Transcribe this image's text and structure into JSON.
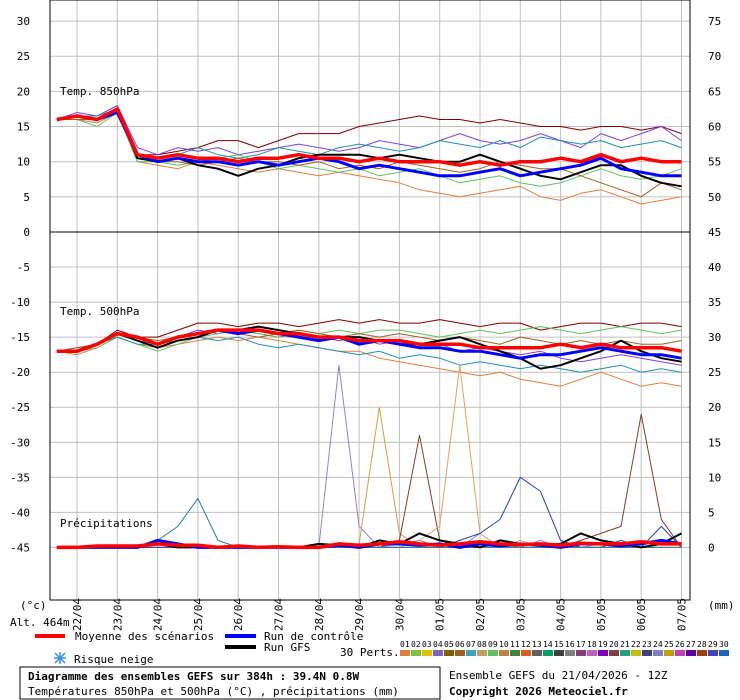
{
  "chart_data": [
    {
      "type": "line",
      "title": "Temp. 850hPa",
      "grid": true,
      "ylim": [
        0,
        33
      ],
      "yticks": [
        0,
        5,
        10,
        15,
        20,
        25,
        30
      ],
      "y2lim": [
        45,
        78
      ],
      "y2ticks": [
        50,
        55,
        60,
        65,
        70,
        75
      ],
      "mean": [
        16,
        16.5,
        16,
        17.5,
        11,
        10.5,
        11,
        10.5,
        10.5,
        10,
        10.5,
        10.5,
        11,
        10.5,
        10.5,
        10,
        10.5,
        10,
        10,
        10,
        9.5,
        10,
        9.5,
        10,
        10,
        10.5,
        10,
        11,
        10,
        10.5,
        10,
        10
      ],
      "control": [
        16,
        16.5,
        16,
        17,
        11,
        10,
        10.5,
        10,
        10,
        9.5,
        10,
        9.5,
        10,
        10.5,
        10,
        9,
        9.5,
        9,
        8.5,
        8,
        8,
        8.5,
        9,
        8,
        8.5,
        9,
        9.5,
        10.5,
        9,
        8.5,
        8,
        8
      ],
      "gfs": [
        16,
        16.5,
        16,
        17.5,
        10.5,
        10,
        10.5,
        9.5,
        9,
        8,
        9,
        9.5,
        10.5,
        11,
        11,
        11,
        10.5,
        11,
        10.5,
        10,
        10,
        11,
        10,
        9,
        8,
        7.5,
        8.5,
        9.5,
        9.5,
        8,
        7,
        6.5
      ],
      "perturbations": [
        {
          "color": "#800000",
          "values": [
            16,
            16.5,
            16,
            17.5,
            11,
            11,
            11.5,
            12,
            13,
            13,
            12,
            13,
            14,
            14,
            14,
            15,
            15.5,
            16,
            16.5,
            16,
            16,
            15.5,
            16,
            15.5,
            15,
            15,
            14.5,
            15,
            15,
            14.5,
            15,
            14
          ]
        },
        {
          "color": "#e08040",
          "values": [
            16,
            16,
            15.5,
            17,
            10,
            9.5,
            9,
            10,
            9.5,
            9,
            8.5,
            9,
            8.5,
            8,
            8.5,
            8,
            7.5,
            7,
            6,
            5.5,
            5,
            5.5,
            6,
            6.5,
            5,
            4.5,
            5.5,
            6,
            5,
            4,
            4.5,
            5
          ]
        },
        {
          "color": "#8040e0",
          "values": [
            16,
            17,
            16.5,
            18,
            12,
            11,
            12,
            11.5,
            12,
            11,
            11.5,
            12,
            12.5,
            12,
            11.5,
            12,
            13,
            12.5,
            12,
            13,
            14,
            13,
            12.5,
            13,
            14,
            13,
            12,
            14,
            13,
            14,
            15,
            13
          ]
        },
        {
          "color": "#60c060",
          "values": [
            16,
            16,
            15,
            17,
            10,
            10,
            9.5,
            10,
            10.5,
            11,
            10,
            9,
            9.5,
            9,
            8.5,
            9,
            8,
            8.5,
            9,
            8,
            7,
            7.5,
            8,
            7,
            6.5,
            7,
            8,
            9,
            8,
            7.5,
            8,
            9
          ]
        },
        {
          "color": "#2090b0",
          "values": [
            16,
            16.5,
            16.5,
            17.5,
            11,
            10.5,
            11,
            12,
            11,
            10.5,
            11,
            12,
            11.5,
            11,
            12,
            12.5,
            12,
            11.5,
            12,
            13,
            12.5,
            12,
            13,
            12,
            13.5,
            13,
            12.5,
            13,
            12,
            12.5,
            13,
            12
          ]
        },
        {
          "color": "#a06020",
          "values": [
            16,
            16,
            16,
            17,
            10.5,
            10,
            10,
            9.5,
            10,
            10.5,
            10,
            10,
            9.5,
            10,
            9,
            9.5,
            9,
            10,
            9.5,
            9,
            8.5,
            9,
            10,
            9.5,
            9,
            9,
            8,
            7,
            6,
            5,
            7,
            6
          ]
        }
      ]
    },
    {
      "type": "line",
      "title": "Temp. 500hPa",
      "grid": true,
      "ylim": [
        -52.5,
        0
      ],
      "yticks": [
        -45,
        -40,
        -35,
        -30,
        -25,
        -20,
        -15,
        -10,
        -5
      ],
      "mean": [
        -17,
        -17,
        -16,
        -14.5,
        -15,
        -16,
        -15,
        -14.5,
        -14,
        -14,
        -14,
        -14.5,
        -14.5,
        -15,
        -15,
        -15.5,
        -15.5,
        -15.5,
        -16,
        -16,
        -16,
        -16.5,
        -16.5,
        -16.5,
        -16.5,
        -16,
        -16.5,
        -16,
        -16.5,
        -16.5,
        -16.5,
        -17
      ],
      "control": [
        -17,
        -17,
        -16,
        -14.5,
        -15,
        -16,
        -15,
        -14.5,
        -14,
        -14.5,
        -14,
        -14.5,
        -15,
        -15.5,
        -15,
        -16,
        -15.5,
        -16,
        -16.5,
        -16.5,
        -17,
        -17,
        -17.5,
        -18,
        -17.5,
        -17.5,
        -17,
        -16.5,
        -17,
        -17.5,
        -17.5,
        -18
      ],
      "gfs": [
        -17,
        -17,
        -16,
        -14.5,
        -15.5,
        -16.5,
        -15.5,
        -15,
        -14,
        -14,
        -13.5,
        -14,
        -14.5,
        -15,
        -15,
        -15,
        -15.5,
        -16,
        -16,
        -15.5,
        -15,
        -16,
        -17,
        -18,
        -19.5,
        -19,
        -18,
        -17,
        -15.5,
        -17,
        -18,
        -18.5
      ],
      "perturbations": [
        {
          "color": "#800000",
          "values": [
            -17,
            -17,
            -16,
            -14,
            -15,
            -15,
            -14,
            -13,
            -13,
            -13.5,
            -13,
            -13,
            -13.5,
            -13,
            -12.5,
            -13,
            -12.5,
            -13,
            -13,
            -12.5,
            -13,
            -13.5,
            -13,
            -13,
            -14,
            -13.5,
            -13,
            -13,
            -13.5,
            -13,
            -13,
            -13.5
          ]
        },
        {
          "color": "#e08040",
          "values": [
            -17,
            -17.5,
            -16.5,
            -15,
            -16,
            -16.5,
            -16,
            -15.5,
            -15,
            -15.5,
            -15,
            -15.5,
            -16,
            -16.5,
            -17,
            -17,
            -18,
            -18.5,
            -19,
            -19.5,
            -20,
            -20.5,
            -20,
            -21,
            -21.5,
            -22,
            -21,
            -20,
            -21,
            -22,
            -21.5,
            -22
          ]
        },
        {
          "color": "#8040e0",
          "values": [
            -17,
            -16.5,
            -16,
            -14.5,
            -15.5,
            -16,
            -15,
            -14,
            -14.5,
            -14,
            -14.5,
            -15,
            -14.5,
            -15,
            -15.5,
            -15,
            -16,
            -15.5,
            -16,
            -16,
            -17,
            -16.5,
            -17,
            -17.5,
            -17,
            -18,
            -18.5,
            -18,
            -17.5,
            -18,
            -18.5,
            -19
          ]
        },
        {
          "color": "#60c060",
          "values": [
            -17,
            -17,
            -16.5,
            -15,
            -16,
            -17,
            -16,
            -15,
            -14.5,
            -14,
            -14.5,
            -15,
            -14,
            -14.5,
            -14,
            -14.5,
            -14,
            -14,
            -14.5,
            -15,
            -14.5,
            -14,
            -14.5,
            -14,
            -13.5,
            -14,
            -14.5,
            -14,
            -13.5,
            -14,
            -14.5,
            -14
          ]
        },
        {
          "color": "#2090b0",
          "values": [
            -17,
            -17,
            -16,
            -15,
            -16,
            -16,
            -15.5,
            -15,
            -15.5,
            -15,
            -16,
            -16.5,
            -16,
            -16.5,
            -17,
            -17.5,
            -17,
            -18,
            -17.5,
            -18,
            -19,
            -18.5,
            -19,
            -19.5,
            -19,
            -19.5,
            -20,
            -19.5,
            -19,
            -20,
            -19.5,
            -20
          ]
        },
        {
          "color": "#a06020",
          "values": [
            -17,
            -16.5,
            -16,
            -14.5,
            -15,
            -15.5,
            -15,
            -14.5,
            -14,
            -14.5,
            -15,
            -14.5,
            -14,
            -14.5,
            -15,
            -14.5,
            -15,
            -14.5,
            -15,
            -15.5,
            -15,
            -15.5,
            -16,
            -15,
            -15.5,
            -16,
            -15.5,
            -16,
            -15.5,
            -16,
            -16,
            -15.5
          ]
        }
      ]
    },
    {
      "type": "line",
      "title": "Précipitations",
      "y2lim": [
        -7.5,
        45
      ],
      "y2ticks": [
        0,
        5,
        10,
        15,
        20,
        25,
        30,
        35,
        40,
        45
      ],
      "mean": [
        0,
        0,
        0.2,
        0.2,
        0.2,
        0.5,
        0.3,
        0.3,
        0,
        0.2,
        0,
        0.1,
        0,
        0,
        0.5,
        0.3,
        0.5,
        0.8,
        0.5,
        0.3,
        0.5,
        0.8,
        0.5,
        0.4,
        0.5,
        0.3,
        0.6,
        0.5,
        0.5,
        0.8,
        0.5,
        0.5
      ],
      "control": [
        0,
        0,
        0,
        0,
        0,
        1,
        0.5,
        0,
        0,
        0,
        0,
        0,
        0,
        0,
        0.3,
        0,
        0.5,
        0.5,
        0.3,
        0.5,
        0,
        0.5,
        0.2,
        0.5,
        0.3,
        0,
        0.5,
        0.5,
        0.2,
        0.5,
        1,
        0.5
      ],
      "gfs": [
        0,
        0,
        0,
        0,
        0,
        0.5,
        0,
        0,
        0,
        0,
        0,
        0,
        0,
        0.5,
        0.3,
        0,
        1,
        0.5,
        2,
        1,
        0.5,
        0,
        1,
        0.5,
        0.3,
        0.5,
        2,
        1,
        0.5,
        0,
        0.5,
        2
      ],
      "perturbations": [
        {
          "color": "#9080e0",
          "values": [
            0,
            0,
            0,
            0,
            0,
            0,
            0,
            0,
            0,
            0,
            0,
            0,
            0,
            0,
            26,
            3,
            0,
            0.5,
            1,
            0,
            0,
            2,
            0,
            0,
            1,
            0,
            0,
            0.5,
            0,
            0,
            0,
            0
          ]
        },
        {
          "color": "#d0a040",
          "values": [
            0,
            0,
            0,
            0,
            0,
            0,
            0,
            0,
            0,
            0,
            0,
            0,
            0,
            0,
            0,
            0.5,
            20,
            2,
            0,
            0.5,
            0,
            0,
            0,
            0,
            0,
            0.5,
            0,
            0,
            0,
            0,
            0,
            0
          ]
        },
        {
          "color": "#804020",
          "values": [
            0,
            0,
            0,
            0,
            0,
            0,
            0,
            0,
            0,
            0,
            0,
            0,
            0,
            0,
            0,
            0,
            0,
            1,
            16,
            1,
            0,
            0,
            0.5,
            0,
            0,
            0,
            1,
            2,
            3,
            19,
            4,
            0
          ]
        },
        {
          "color": "#e0a060",
          "values": [
            0,
            0,
            0,
            0,
            0,
            0,
            0,
            0,
            0,
            0,
            0,
            0,
            0,
            0,
            0,
            0,
            0,
            0,
            1,
            3,
            26,
            2,
            0,
            1,
            0,
            0,
            0,
            0,
            0,
            0,
            0,
            0
          ]
        },
        {
          "color": "#2040c0",
          "values": [
            0,
            0,
            0,
            0,
            0,
            0,
            0,
            0,
            0,
            0,
            0,
            0,
            0,
            0,
            0,
            0,
            0,
            0,
            0,
            0,
            1,
            2,
            4,
            10,
            8,
            1,
            0,
            0,
            1,
            0,
            3,
            0
          ]
        },
        {
          "color": "#2080a0",
          "values": [
            0,
            0,
            0,
            0,
            0,
            1,
            3,
            7,
            1,
            0,
            0,
            0,
            0,
            0,
            0,
            0,
            0,
            0,
            0,
            0,
            0,
            0,
            0,
            0,
            0,
            0,
            0,
            0,
            0,
            0,
            0,
            0
          ]
        }
      ]
    }
  ],
  "x": [
    null,
    "22/04",
    null,
    "23/04",
    null,
    "24/04",
    null,
    "25/04",
    null,
    "26/04",
    null,
    "27/04",
    null,
    "28/04",
    null,
    "29/04",
    null,
    "30/04",
    null,
    "01/05",
    null,
    "02/05",
    null,
    "03/05",
    null,
    "04/05",
    null,
    "05/05",
    null,
    "06/05",
    null,
    "07/05"
  ],
  "unit_left": "(°c)",
  "unit_right": "(mm)",
  "altitude": "Alt. 464m",
  "legend": [
    {
      "name": "Moyenne des scénarios",
      "color": "#ff0000"
    },
    {
      "name": "Run de contrôle",
      "color": "#0000ff"
    },
    {
      "name": "Run GFS",
      "color": "#000000"
    }
  ],
  "snow": "Risque neige",
  "perts_label": "30 Perts.",
  "perts": [
    {
      "name": "01",
      "color": "#e08040"
    },
    {
      "name": "02",
      "color": "#80c040"
    },
    {
      "name": "03",
      "color": "#e0c000"
    },
    {
      "name": "04",
      "color": "#8060c0"
    },
    {
      "name": "05",
      "color": "#806000"
    },
    {
      "name": "06",
      "color": "#a06020"
    },
    {
      "name": "07",
      "color": "#40a0c0"
    },
    {
      "name": "08",
      "color": "#c0a060"
    },
    {
      "name": "09",
      "color": "#60c060"
    },
    {
      "name": "10",
      "color": "#c08040"
    },
    {
      "name": "11",
      "color": "#408040"
    },
    {
      "name": "12",
      "color": "#e06020"
    },
    {
      "name": "13",
      "color": "#606060"
    },
    {
      "name": "14",
      "color": "#00a060"
    },
    {
      "name": "15",
      "color": "#404040"
    },
    {
      "name": "16",
      "color": "#808080"
    },
    {
      "name": "17",
      "color": "#804080"
    },
    {
      "name": "18",
      "color": "#c060c0"
    },
    {
      "name": "19",
      "color": "#8000c0"
    },
    {
      "name": "20",
      "color": "#804040"
    },
    {
      "name": "21",
      "color": "#20a080"
    },
    {
      "name": "22",
      "color": "#c0c000"
    },
    {
      "name": "23",
      "color": "#404080"
    },
    {
      "name": "24",
      "color": "#8080c0"
    },
    {
      "name": "25",
      "color": "#c0a000"
    },
    {
      "name": "26",
      "color": "#c040c0"
    },
    {
      "name": "27",
      "color": "#6000a0"
    },
    {
      "name": "28",
      "color": "#a04000"
    },
    {
      "name": "29",
      "color": "#4040c0"
    },
    {
      "name": "30",
      "color": "#2060c0"
    }
  ],
  "footer": {
    "title": "Diagramme des ensembles GEFS sur 384h : 39.4N 0.8W",
    "subtitle": "Températures 850hPa et 500hPa (°C) , précipitations (mm)",
    "run": "Ensemble GEFS du 21/04/2026 - 12Z",
    "copyright": "Copyright 2026 Meteociel.fr"
  }
}
